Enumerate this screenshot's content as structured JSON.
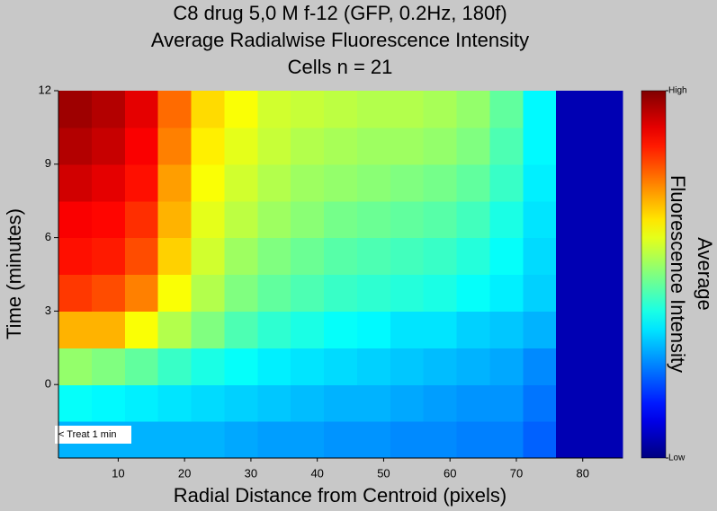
{
  "chart_data": {
    "type": "heatmap",
    "title": [
      "C8 drug 5,0 M f-12 (GFP, 0.2Hz, 180f)",
      "Average Radialwise Fluorescence Intensity",
      "Cells n = 21"
    ],
    "x_label": "Radial Distance from Centroid (pixels)",
    "y_label": "Time (minutes)",
    "colorbar_label": [
      "Average",
      "Fluorescence Intensity"
    ],
    "annotation": "< Treat 1 min",
    "xlim": [
      1,
      86
    ],
    "xticks": [
      10,
      20,
      30,
      40,
      50,
      60,
      70,
      80
    ],
    "ylim": [
      -3,
      12
    ],
    "yticks": [
      0,
      3,
      6,
      9,
      12
    ],
    "clim": [
      0,
      1
    ],
    "cticks": [
      {
        "value": 0,
        "label": "Low"
      },
      {
        "value": 1,
        "label": "High"
      }
    ],
    "colormap": "jet",
    "x_bins": [
      1,
      6,
      11,
      16,
      21,
      26,
      31,
      36,
      41,
      46,
      51,
      56,
      61,
      66,
      71,
      76,
      81,
      86
    ],
    "y_bins": [
      -3,
      -1.5,
      0,
      1.5,
      3,
      4.5,
      6,
      7.5,
      9,
      10.5,
      12
    ],
    "z": [
      [
        0.3,
        0.3,
        0.3,
        0.3,
        0.3,
        0.29,
        0.28,
        0.28,
        0.27,
        0.27,
        0.26,
        0.26,
        0.25,
        0.25,
        0.22,
        0.05,
        0.05
      ],
      [
        0.38,
        0.37,
        0.36,
        0.35,
        0.34,
        0.33,
        0.32,
        0.31,
        0.3,
        0.3,
        0.29,
        0.28,
        0.27,
        0.27,
        0.24,
        0.05,
        0.05
      ],
      [
        0.52,
        0.5,
        0.47,
        0.43,
        0.4,
        0.38,
        0.36,
        0.35,
        0.34,
        0.33,
        0.32,
        0.31,
        0.3,
        0.29,
        0.26,
        0.05,
        0.05
      ],
      [
        0.7,
        0.7,
        0.62,
        0.55,
        0.5,
        0.45,
        0.42,
        0.4,
        0.38,
        0.37,
        0.35,
        0.35,
        0.33,
        0.32,
        0.3,
        0.05,
        0.05
      ],
      [
        0.82,
        0.8,
        0.75,
        0.62,
        0.55,
        0.5,
        0.47,
        0.45,
        0.43,
        0.42,
        0.41,
        0.4,
        0.38,
        0.36,
        0.33,
        0.05,
        0.05
      ],
      [
        0.86,
        0.85,
        0.8,
        0.67,
        0.58,
        0.53,
        0.5,
        0.48,
        0.46,
        0.45,
        0.44,
        0.43,
        0.41,
        0.38,
        0.34,
        0.05,
        0.05
      ],
      [
        0.88,
        0.87,
        0.83,
        0.7,
        0.6,
        0.56,
        0.53,
        0.51,
        0.49,
        0.48,
        0.47,
        0.46,
        0.44,
        0.4,
        0.35,
        0.05,
        0.05
      ],
      [
        0.92,
        0.9,
        0.86,
        0.72,
        0.62,
        0.58,
        0.55,
        0.53,
        0.52,
        0.51,
        0.5,
        0.49,
        0.47,
        0.43,
        0.36,
        0.05,
        0.05
      ],
      [
        0.95,
        0.93,
        0.88,
        0.75,
        0.64,
        0.6,
        0.57,
        0.55,
        0.54,
        0.53,
        0.53,
        0.52,
        0.5,
        0.45,
        0.37,
        0.05,
        0.05
      ],
      [
        0.97,
        0.95,
        0.9,
        0.77,
        0.66,
        0.62,
        0.58,
        0.57,
        0.56,
        0.55,
        0.55,
        0.54,
        0.52,
        0.47,
        0.37,
        0.05,
        0.05
      ]
    ]
  }
}
